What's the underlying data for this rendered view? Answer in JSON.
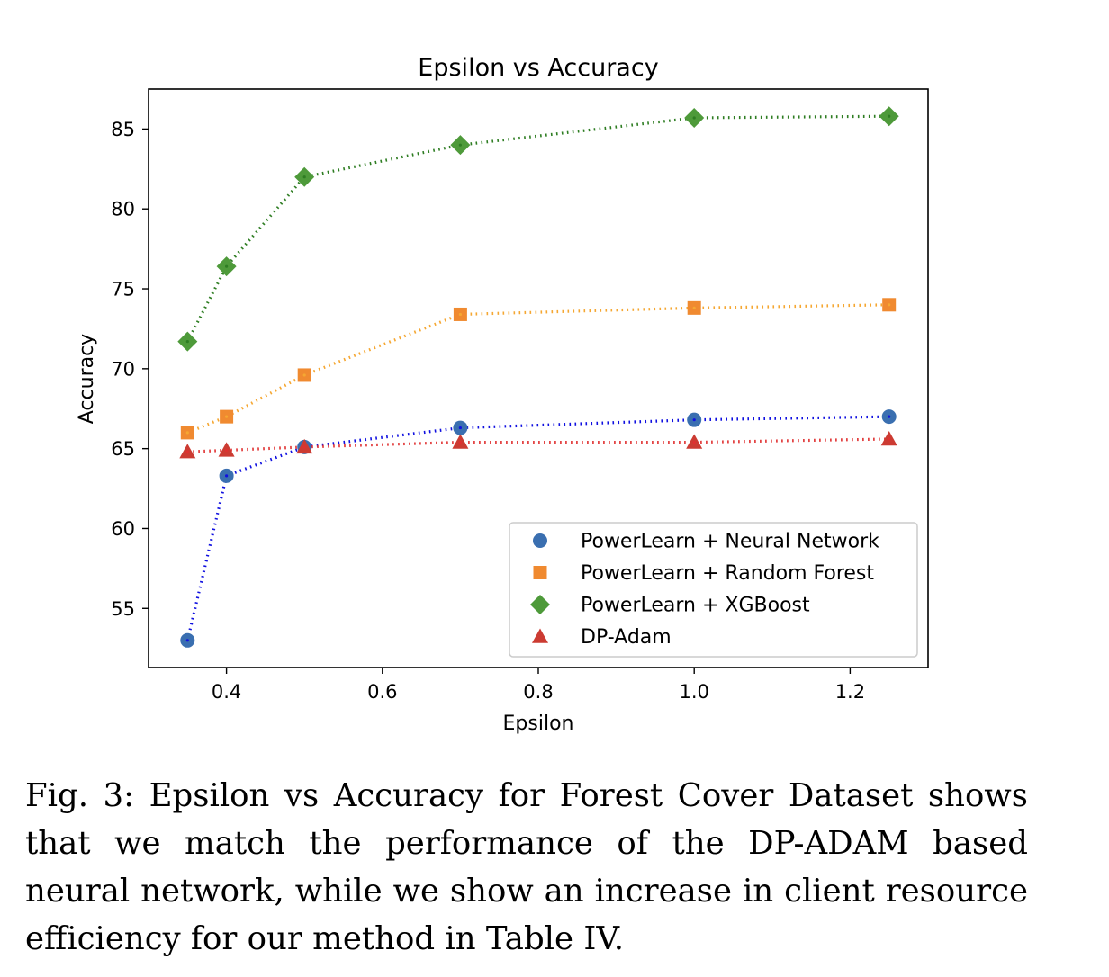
{
  "chart_data": {
    "type": "line",
    "title": "Epsilon vs Accuracy",
    "xlabel": "Epsilon",
    "ylabel": "Accuracy",
    "xlim": [
      0.3,
      1.3
    ],
    "ylim": [
      51.3,
      87.5
    ],
    "xticks": [
      0.4,
      0.6,
      0.8,
      1.0,
      1.2
    ],
    "xtick_labels": [
      "0.4",
      "0.6",
      "0.8",
      "1.0",
      "1.2"
    ],
    "yticks": [
      55,
      60,
      65,
      70,
      75,
      80,
      85
    ],
    "ytick_labels": [
      "55",
      "60",
      "65",
      "70",
      "75",
      "80",
      "85"
    ],
    "grid": false,
    "legend_position": "lower-right",
    "x": [
      0.35,
      0.4,
      0.5,
      0.7,
      1.0,
      1.25
    ],
    "series": [
      {
        "name": "PowerLearn + Neural Network",
        "marker": "circle",
        "color": "#3a6fb0",
        "line_color": "#1010e0",
        "values": [
          53.0,
          63.3,
          65.1,
          66.3,
          66.8,
          67.0
        ]
      },
      {
        "name": "PowerLearn + Random Forest",
        "marker": "square",
        "color": "#f08a30",
        "line_color": "#f5a732",
        "values": [
          66.0,
          67.0,
          69.6,
          73.4,
          73.8,
          74.0
        ]
      },
      {
        "name": "PowerLearn + XGBoost",
        "marker": "diamond",
        "color": "#4e9a3a",
        "line_color": "#2e7d22",
        "values": [
          71.7,
          76.4,
          82.0,
          84.0,
          85.7,
          85.8
        ]
      },
      {
        "name": "DP-Adam",
        "marker": "triangle",
        "color": "#cc3b32",
        "line_color": "#e03030",
        "values": [
          64.8,
          64.9,
          65.1,
          65.4,
          65.4,
          65.6
        ]
      }
    ]
  },
  "caption": "Fig. 3: Epsilon vs Accuracy for Forest Cover Dataset shows that we match the performance of the DP-ADAM based neural network, while we show an increase in client resource efficiency for our method in Table IV."
}
